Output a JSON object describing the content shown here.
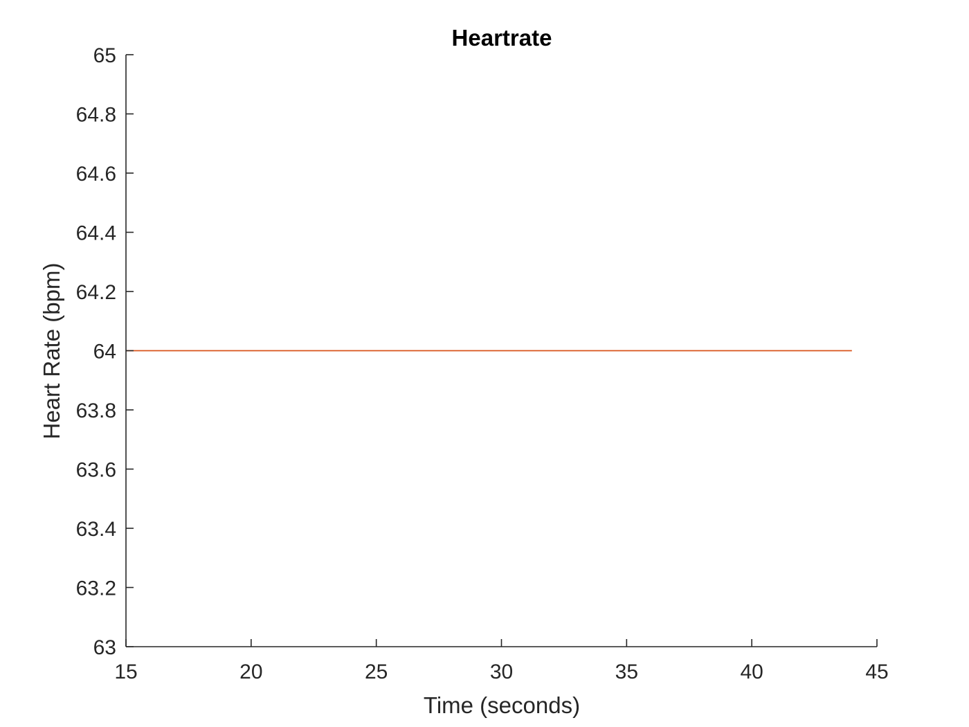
{
  "chart_data": {
    "type": "line",
    "title": "Heartrate",
    "xlabel": "Time (seconds)",
    "ylabel": "Heart Rate (bpm)",
    "xlim": [
      15,
      45
    ],
    "ylim": [
      63,
      65
    ],
    "xticks": [
      15,
      20,
      25,
      30,
      35,
      40,
      45
    ],
    "yticks": [
      63,
      63.2,
      63.4,
      63.6,
      63.8,
      64,
      64.2,
      64.4,
      64.6,
      64.8,
      65
    ],
    "grid": false,
    "series": [
      {
        "color": "#d95319",
        "x": [
          15,
          44
        ],
        "y": [
          64,
          64
        ]
      }
    ]
  }
}
